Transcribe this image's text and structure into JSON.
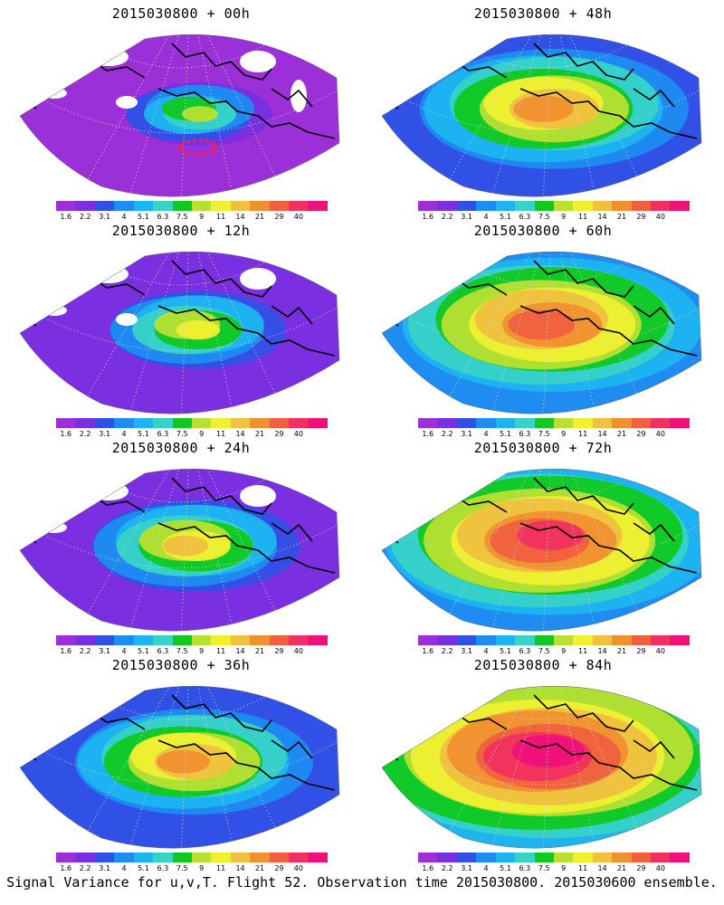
{
  "panels": [
    {
      "title": "2015030800 + 00h",
      "lead_hours": 0
    },
    {
      "title": "2015030800 + 48h",
      "lead_hours": 48
    },
    {
      "title": "2015030800 + 12h",
      "lead_hours": 12
    },
    {
      "title": "2015030800 + 60h",
      "lead_hours": 60
    },
    {
      "title": "2015030800 + 24h",
      "lead_hours": 24
    },
    {
      "title": "2015030800 + 72h",
      "lead_hours": 72
    },
    {
      "title": "2015030800 + 36h",
      "lead_hours": 36
    },
    {
      "title": "2015030800 + 84h",
      "lead_hours": 84
    }
  ],
  "colorbar": {
    "ticks": [
      "1.6",
      "2.2",
      "3.1",
      "4",
      "5.1",
      "6.3",
      "7.5",
      "9",
      "11",
      "14",
      "21",
      "29",
      "40"
    ],
    "colors": [
      "#9b30d8",
      "#7a2fe0",
      "#3050e6",
      "#1e8cf0",
      "#1eb4f0",
      "#38d2c8",
      "#10c820",
      "#b8e030",
      "#f0f030",
      "#f0c040",
      "#f09030",
      "#f06040",
      "#f03060",
      "#f0107a"
    ]
  },
  "caption": "Signal Variance for u,v,T. Flight 52. Observation time 2015030800. 2015030600 ensemble."
}
